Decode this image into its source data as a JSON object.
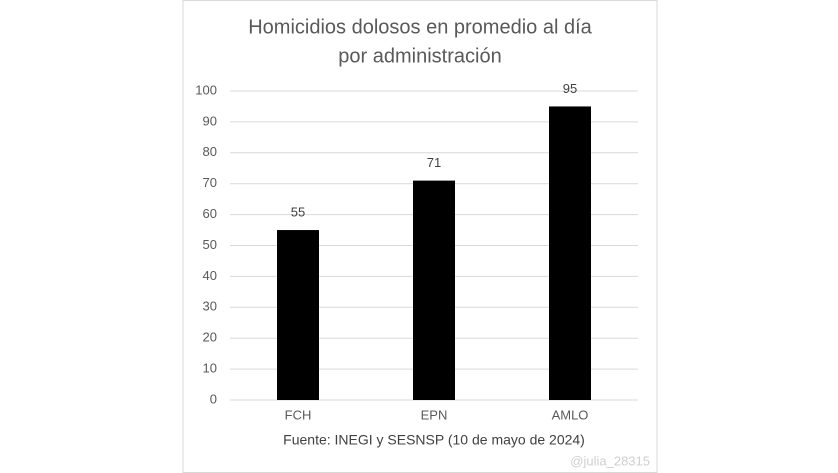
{
  "chart_data": {
    "type": "bar",
    "title": [
      "Homicidios dolosos en promedio al día",
      "por administración"
    ],
    "categories": [
      "FCH",
      "EPN",
      "AMLO"
    ],
    "values": [
      55,
      71,
      95
    ],
    "color": "#000000",
    "ylim": [
      0,
      100
    ],
    "yticks": [
      0,
      10,
      20,
      30,
      40,
      50,
      60,
      70,
      80,
      90,
      100
    ],
    "grid": true,
    "source": "Fuente: INEGI y SESNSP (10 de mayo de 2024)",
    "watermark": "@julia_28315"
  }
}
